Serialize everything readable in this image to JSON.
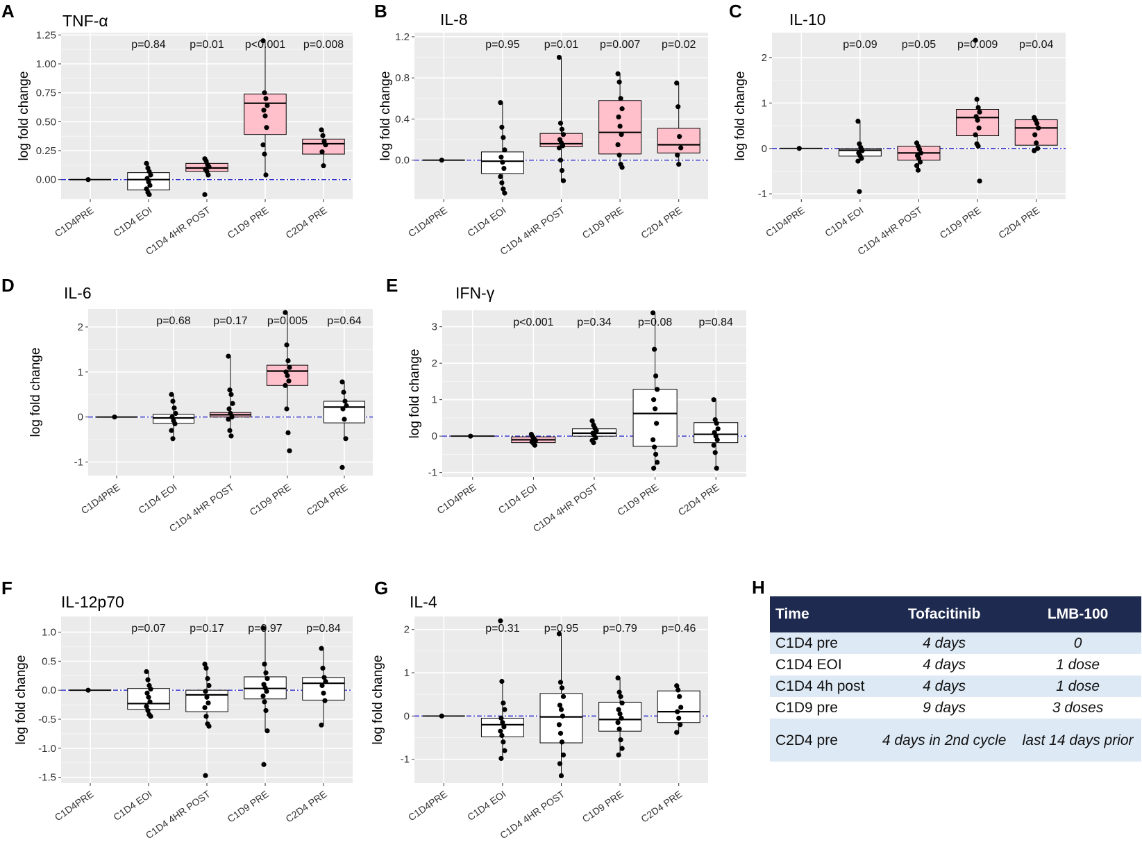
{
  "categories": [
    "C1D4PRE",
    "C1D4 EOI",
    "C1D4 4HR POST",
    "C1D9 PRE",
    "C2D4 PRE"
  ],
  "ylabel": "log fold change",
  "colors": {
    "highlight": "#ffc0cb",
    "plain": "#ffffff",
    "panel_bg": "#ebebeb",
    "grid": "#ffffff",
    "ref_line": "#2a2acc",
    "table_header": "#1e2a4f",
    "table_row": "#dde9f5"
  },
  "chart_data": [
    {
      "letter": "A",
      "title": "TNF-α",
      "type": "box",
      "ylim": [
        -0.17,
        1.27
      ],
      "yticks": [
        0,
        0.25,
        0.5,
        0.75,
        1.0,
        1.25
      ],
      "ytick_labels": [
        "0.00",
        "0.25",
        "0.50",
        "0.75",
        "1.00",
        "1.25"
      ],
      "pvalues": [
        "p=0.84",
        "p=0.01",
        "p<0.001",
        "p=0.008"
      ],
      "boxes": [
        {
          "q1": 0,
          "med": 0,
          "q3": 0,
          "lo": 0,
          "hi": 0,
          "fill": "plain",
          "points": [
            0
          ]
        },
        {
          "q1": -0.09,
          "med": 0.0,
          "q3": 0.06,
          "lo": -0.13,
          "hi": 0.14,
          "fill": "plain",
          "points": [
            0.14,
            0.1,
            0.07,
            0.04,
            0.01,
            -0.02,
            -0.05,
            -0.08,
            -0.11,
            -0.13
          ]
        },
        {
          "q1": 0.07,
          "med": 0.1,
          "q3": 0.14,
          "lo": 0.02,
          "hi": 0.18,
          "fill": "highlight",
          "points": [
            0.18,
            0.16,
            0.13,
            0.11,
            0.09,
            0.07,
            0.04,
            -0.13
          ]
        },
        {
          "q1": 0.39,
          "med": 0.66,
          "q3": 0.74,
          "lo": 0.04,
          "hi": 1.2,
          "fill": "highlight",
          "points": [
            1.2,
            0.75,
            0.7,
            0.64,
            0.6,
            0.55,
            0.45,
            0.3,
            0.22,
            0.04
          ]
        },
        {
          "q1": 0.22,
          "med": 0.31,
          "q3": 0.35,
          "lo": 0.12,
          "hi": 0.43,
          "fill": "highlight",
          "points": [
            0.43,
            0.38,
            0.33,
            0.3,
            0.24,
            0.12
          ]
        }
      ]
    },
    {
      "letter": "B",
      "title": "IL-8",
      "type": "box",
      "ylim": [
        -0.38,
        1.24
      ],
      "yticks": [
        0,
        0.4,
        0.8,
        1.2
      ],
      "ytick_labels": [
        "0.0",
        "0.4",
        "0.8",
        "1.2"
      ],
      "pvalues": [
        "p=0.95",
        "p=0.01",
        "p=0.007",
        "p=0.02"
      ],
      "boxes": [
        {
          "q1": 0,
          "med": 0,
          "q3": 0,
          "lo": 0,
          "hi": 0,
          "fill": "plain",
          "points": [
            0
          ]
        },
        {
          "q1": -0.13,
          "med": -0.01,
          "q3": 0.08,
          "lo": -0.32,
          "hi": 0.56,
          "fill": "plain",
          "points": [
            0.56,
            0.32,
            0.22,
            0.1,
            0.03,
            -0.02,
            -0.08,
            -0.16,
            -0.22,
            -0.28,
            -0.32
          ]
        },
        {
          "q1": 0.13,
          "med": 0.16,
          "q3": 0.26,
          "lo": -0.2,
          "hi": 1.0,
          "fill": "highlight",
          "points": [
            1.0,
            0.36,
            0.3,
            0.25,
            0.2,
            0.17,
            0.14,
            0.12,
            0.0,
            -0.1,
            -0.2
          ]
        },
        {
          "q1": 0.06,
          "med": 0.27,
          "q3": 0.58,
          "lo": -0.07,
          "hi": 0.84,
          "fill": "highlight",
          "points": [
            0.84,
            0.76,
            0.6,
            0.5,
            0.42,
            0.33,
            0.25,
            0.15,
            0.05,
            -0.04,
            -0.07
          ]
        },
        {
          "q1": 0.07,
          "med": 0.15,
          "q3": 0.31,
          "lo": -0.04,
          "hi": 0.75,
          "fill": "highlight",
          "points": [
            0.75,
            0.52,
            0.23,
            0.12,
            0.05,
            -0.04
          ]
        }
      ]
    },
    {
      "letter": "C",
      "title": "IL-10",
      "type": "box",
      "ylim": [
        -1.12,
        2.55
      ],
      "yticks": [
        -1,
        0,
        1,
        2
      ],
      "ytick_labels": [
        "-1",
        "0",
        "1",
        "2"
      ],
      "pvalues": [
        "p=0.09",
        "p=0.05",
        "p=0.009",
        "p=0.04"
      ],
      "boxes": [
        {
          "q1": 0,
          "med": 0,
          "q3": 0,
          "lo": 0,
          "hi": 0,
          "fill": "plain",
          "points": [
            0
          ]
        },
        {
          "q1": -0.17,
          "med": -0.04,
          "q3": 0.0,
          "lo": -0.28,
          "hi": 0.6,
          "fill": "plain",
          "points": [
            0.6,
            0.1,
            0.02,
            -0.05,
            -0.1,
            -0.16,
            -0.22,
            -0.28,
            -0.95
          ]
        },
        {
          "q1": -0.26,
          "med": -0.1,
          "q3": 0.05,
          "lo": -0.48,
          "hi": 0.12,
          "fill": "highlight",
          "points": [
            0.12,
            0.05,
            -0.02,
            -0.1,
            -0.16,
            -0.22,
            -0.3,
            -0.38,
            -0.48
          ]
        },
        {
          "q1": 0.28,
          "med": 0.68,
          "q3": 0.86,
          "lo": 0.05,
          "hi": 1.08,
          "fill": "highlight",
          "points": [
            2.38,
            1.08,
            0.9,
            0.8,
            0.7,
            0.62,
            0.45,
            0.3,
            0.1,
            0.05,
            -0.72
          ]
        },
        {
          "q1": 0.07,
          "med": 0.45,
          "q3": 0.63,
          "lo": -0.05,
          "hi": 0.68,
          "fill": "highlight",
          "points": [
            0.68,
            0.62,
            0.55,
            0.45,
            0.3,
            0.12,
            0.0,
            -0.05
          ]
        }
      ]
    },
    {
      "letter": "D",
      "title": "IL-6",
      "type": "box",
      "ylim": [
        -1.3,
        2.4
      ],
      "yticks": [
        -1,
        0,
        1,
        2
      ],
      "ytick_labels": [
        "-1",
        "0",
        "1",
        "2"
      ],
      "pvalues": [
        "p=0.68",
        "p=0.17",
        "p=0.005",
        "p=0.64"
      ],
      "boxes": [
        {
          "q1": 0,
          "med": 0,
          "q3": 0,
          "lo": 0,
          "hi": 0,
          "fill": "plain",
          "points": [
            0
          ]
        },
        {
          "q1": -0.14,
          "med": -0.02,
          "q3": 0.06,
          "lo": -0.48,
          "hi": 0.5,
          "fill": "plain",
          "points": [
            0.5,
            0.35,
            0.2,
            0.08,
            0.0,
            -0.08,
            -0.15,
            -0.3,
            -0.48
          ]
        },
        {
          "q1": 0.0,
          "med": 0.05,
          "q3": 0.1,
          "lo": -0.42,
          "hi": 1.35,
          "fill": "highlight",
          "points": [
            1.35,
            0.6,
            0.5,
            0.3,
            0.18,
            0.08,
            0.0,
            -0.05,
            -0.3,
            -0.42
          ]
        },
        {
          "q1": 0.7,
          "med": 1.02,
          "q3": 1.15,
          "lo": 0.18,
          "hi": 2.32,
          "fill": "highlight",
          "points": [
            2.32,
            1.6,
            1.25,
            1.1,
            1.0,
            0.92,
            0.8,
            0.7,
            0.18,
            -0.35,
            -0.75
          ]
        },
        {
          "q1": -0.13,
          "med": 0.22,
          "q3": 0.35,
          "lo": -0.48,
          "hi": 0.78,
          "fill": "plain",
          "points": [
            0.78,
            0.55,
            0.35,
            0.25,
            0.18,
            -0.05,
            -0.48,
            -1.12
          ]
        }
      ]
    },
    {
      "letter": "E",
      "title": "IFN-γ",
      "type": "box",
      "ylim": [
        -1.12,
        3.45
      ],
      "yticks": [
        -1,
        0,
        1,
        2,
        3
      ],
      "ytick_labels": [
        "-1",
        "0",
        "1",
        "2",
        "3"
      ],
      "pvalues": [
        "p<0.001",
        "p=0.34",
        "p=0.08",
        "p=0.84"
      ],
      "boxes": [
        {
          "q1": 0,
          "med": 0,
          "q3": 0,
          "lo": 0,
          "hi": 0,
          "fill": "plain",
          "points": [
            0
          ]
        },
        {
          "q1": -0.18,
          "med": -0.1,
          "q3": -0.02,
          "lo": -0.25,
          "hi": 0.05,
          "fill": "highlight",
          "points": [
            0.05,
            -0.02,
            -0.08,
            -0.12,
            -0.16,
            -0.2,
            -0.25
          ]
        },
        {
          "q1": 0.0,
          "med": 0.08,
          "q3": 0.2,
          "lo": -0.18,
          "hi": 0.42,
          "fill": "plain",
          "points": [
            0.42,
            0.3,
            0.22,
            0.15,
            0.08,
            0.02,
            -0.05,
            -0.12,
            -0.18
          ]
        },
        {
          "q1": -0.28,
          "med": 0.62,
          "q3": 1.28,
          "lo": -0.88,
          "hi": 3.38,
          "fill": "plain",
          "points": [
            3.38,
            2.38,
            1.65,
            1.28,
            1.0,
            0.75,
            0.35,
            -0.1,
            -0.3,
            -0.5,
            -0.72,
            -0.88
          ]
        },
        {
          "q1": -0.18,
          "med": 0.05,
          "q3": 0.37,
          "lo": -0.88,
          "hi": 1.0,
          "fill": "plain",
          "points": [
            1.0,
            0.45,
            0.35,
            0.2,
            0.1,
            0.0,
            -0.1,
            -0.25,
            -0.45,
            -0.88
          ]
        }
      ]
    },
    {
      "letter": "F",
      "title": "IL-12p70",
      "type": "box",
      "ylim": [
        -1.6,
        1.27
      ],
      "yticks": [
        -1.5,
        -1.0,
        -0.5,
        0,
        0.5,
        1.0
      ],
      "ytick_labels": [
        "-1.5",
        "-1.0",
        "-0.5",
        "0.0",
        "0.5",
        "1.0"
      ],
      "pvalues": [
        "p=0.07",
        "p=0.17",
        "p=0.97",
        "p=0.84"
      ],
      "boxes": [
        {
          "q1": 0,
          "med": 0,
          "q3": 0,
          "lo": 0,
          "hi": 0,
          "fill": "plain",
          "points": [
            0
          ]
        },
        {
          "q1": -0.33,
          "med": -0.23,
          "q3": 0.03,
          "lo": -0.45,
          "hi": 0.32,
          "fill": "plain",
          "points": [
            0.32,
            0.18,
            0.08,
            0.02,
            -0.05,
            -0.12,
            -0.2,
            -0.28,
            -0.35,
            -0.42,
            -0.45
          ]
        },
        {
          "q1": -0.37,
          "med": -0.08,
          "q3": 0.0,
          "lo": -0.6,
          "hi": 0.45,
          "fill": "plain",
          "points": [
            0.45,
            0.38,
            0.2,
            0.08,
            -0.02,
            -0.12,
            -0.22,
            -0.3,
            -0.45,
            -0.58,
            -0.62,
            -1.47
          ]
        },
        {
          "q1": -0.15,
          "med": 0.03,
          "q3": 0.23,
          "lo": -0.7,
          "hi": 1.07,
          "fill": "plain",
          "points": [
            1.07,
            0.45,
            0.3,
            0.2,
            0.1,
            0.04,
            -0.02,
            -0.1,
            -0.2,
            -0.35,
            -0.7,
            -1.28
          ]
        },
        {
          "q1": -0.17,
          "med": 0.12,
          "q3": 0.22,
          "lo": -0.6,
          "hi": 0.72,
          "fill": "plain",
          "points": [
            0.72,
            0.38,
            0.22,
            0.15,
            0.08,
            -0.05,
            -0.18,
            -0.6
          ]
        }
      ]
    },
    {
      "letter": "G",
      "title": "IL-4",
      "type": "box",
      "ylim": [
        -1.55,
        2.3
      ],
      "yticks": [
        -1,
        0,
        1,
        2
      ],
      "ytick_labels": [
        "-1",
        "0",
        "1",
        "2"
      ],
      "pvalues": [
        "p=0.31",
        "p=0.95",
        "p=0.79",
        "p=0.46"
      ],
      "boxes": [
        {
          "q1": 0,
          "med": 0,
          "q3": 0,
          "lo": 0,
          "hi": 0,
          "fill": "plain",
          "points": [
            0
          ]
        },
        {
          "q1": -0.48,
          "med": -0.2,
          "q3": -0.05,
          "lo": -0.98,
          "hi": 0.8,
          "fill": "plain",
          "points": [
            2.2,
            0.8,
            0.3,
            0.15,
            -0.05,
            -0.15,
            -0.25,
            -0.35,
            -0.45,
            -0.6,
            -0.8,
            -0.98
          ]
        },
        {
          "q1": -0.62,
          "med": -0.02,
          "q3": 0.52,
          "lo": -1.38,
          "hi": 1.9,
          "fill": "plain",
          "points": [
            1.9,
            0.78,
            0.65,
            0.45,
            0.25,
            0.15,
            0.0,
            -0.2,
            -0.4,
            -0.6,
            -0.9,
            -1.1,
            -1.38
          ]
        },
        {
          "q1": -0.35,
          "med": -0.08,
          "q3": 0.32,
          "lo": -0.9,
          "hi": 0.88,
          "fill": "plain",
          "points": [
            0.88,
            0.55,
            0.45,
            0.3,
            0.15,
            0.05,
            -0.05,
            -0.15,
            -0.3,
            -0.55,
            -0.75,
            -0.9
          ]
        },
        {
          "q1": -0.15,
          "med": 0.1,
          "q3": 0.58,
          "lo": -0.38,
          "hi": 0.7,
          "fill": "plain",
          "points": [
            0.7,
            0.6,
            0.45,
            0.2,
            0.1,
            -0.05,
            -0.2,
            -0.38
          ]
        }
      ]
    }
  ],
  "table": {
    "letter": "H",
    "headers": [
      "Time",
      "Tofacitinib",
      "LMB-100"
    ],
    "rows": [
      [
        "C1D4 pre",
        "4 days",
        "0"
      ],
      [
        "C1D4 EOI",
        "4 days",
        "1 dose"
      ],
      [
        "C1D4 4h post",
        "4 days",
        "1 dose"
      ],
      [
        "C1D9 pre",
        "9 days",
        "3 doses"
      ],
      [
        "C2D4 pre",
        "4 days in 2nd cycle",
        "last 14 days prior"
      ]
    ]
  }
}
